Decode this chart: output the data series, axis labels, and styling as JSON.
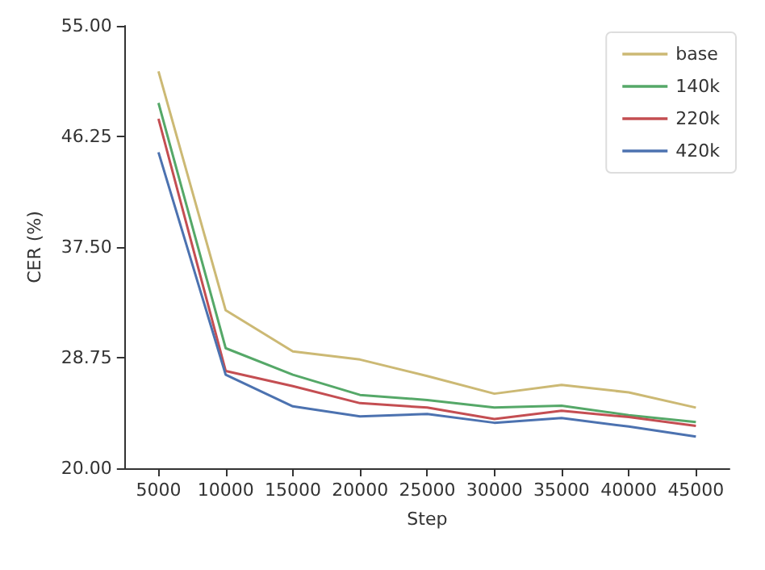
{
  "chart_data": {
    "type": "line",
    "xlabel": "Step",
    "ylabel": "CER (%)",
    "categories": [
      "5000",
      "10000",
      "15000",
      "20000",
      "25000",
      "30000",
      "35000",
      "40000",
      "45000"
    ],
    "series": [
      {
        "name": "base",
        "color": "#ccb974",
        "values": [
          51.4,
          32.5,
          29.25,
          28.6,
          27.3,
          25.9,
          26.6,
          26.0,
          24.8
        ]
      },
      {
        "name": "140k",
        "color": "#55a868",
        "values": [
          48.9,
          29.5,
          27.4,
          25.8,
          25.4,
          24.8,
          24.95,
          24.2,
          23.65
        ]
      },
      {
        "name": "220k",
        "color": "#c44e52",
        "values": [
          47.65,
          27.7,
          26.5,
          25.15,
          24.8,
          23.9,
          24.55,
          24.05,
          23.35
        ]
      },
      {
        "name": "420k",
        "color": "#4c72b0",
        "values": [
          45.0,
          27.4,
          24.9,
          24.1,
          24.3,
          23.6,
          23.97,
          23.3,
          22.5
        ]
      }
    ],
    "ylim": [
      20,
      55
    ],
    "yticks": [
      {
        "value": 20,
        "label": "20.00"
      },
      {
        "value": 28.75,
        "label": "28.75"
      },
      {
        "value": 37.5,
        "label": "37.50"
      },
      {
        "value": 46.25,
        "label": "46.25"
      },
      {
        "value": 55,
        "label": "55.00"
      }
    ],
    "grid": false,
    "legend": "top right",
    "marker": "none",
    "line_style": "solid"
  }
}
